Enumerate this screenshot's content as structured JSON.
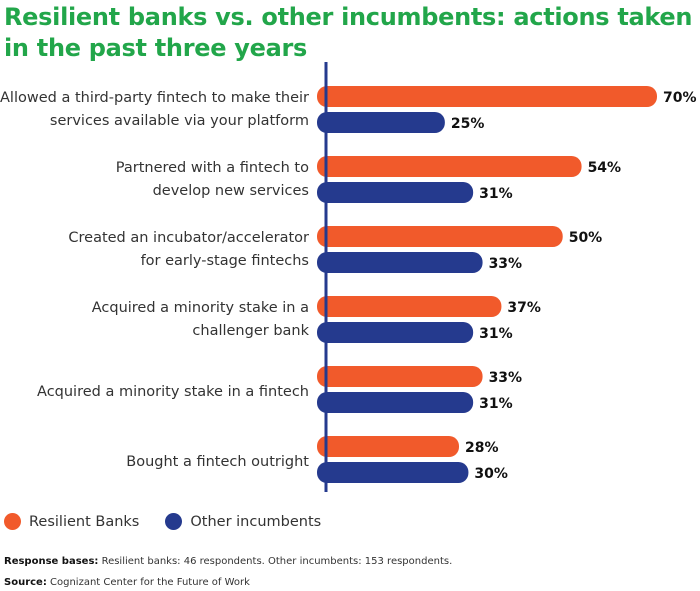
{
  "title": "Resilient banks vs. other incumbents: actions taken in the past three years",
  "chart_data": {
    "type": "bar",
    "orientation": "horizontal",
    "categories": [
      [
        "Allowed a third-party fintech to make their",
        "services available via your platform"
      ],
      [
        "Partnered with a fintech to",
        "develop new services"
      ],
      [
        "Created an incubator/accelerator",
        "for early-stage fintechs"
      ],
      [
        "Acquired a minority stake in a",
        "challenger bank"
      ],
      [
        "Acquired a minority stake in a fintech"
      ],
      [
        "Bought a fintech outright"
      ]
    ],
    "series": [
      {
        "name": "Resilient Banks",
        "color": "#f15a2b",
        "values": [
          70,
          54,
          50,
          37,
          33,
          28
        ]
      },
      {
        "name": "Other incumbents",
        "color": "#253a8e",
        "values": [
          25,
          31,
          33,
          31,
          31,
          30
        ]
      }
    ],
    "value_suffix": "%",
    "xlim": [
      0,
      70
    ],
    "grid": false,
    "legend_position": "bottom-left",
    "axis_color": "#253a8e"
  },
  "notes": {
    "bases_label": "Response bases:",
    "bases_text": " Resilient banks: 46 respondents. Other incumbents: 153 respondents.",
    "source_label": "Source:",
    "source_text": " Cognizant Center for the Future of Work"
  }
}
